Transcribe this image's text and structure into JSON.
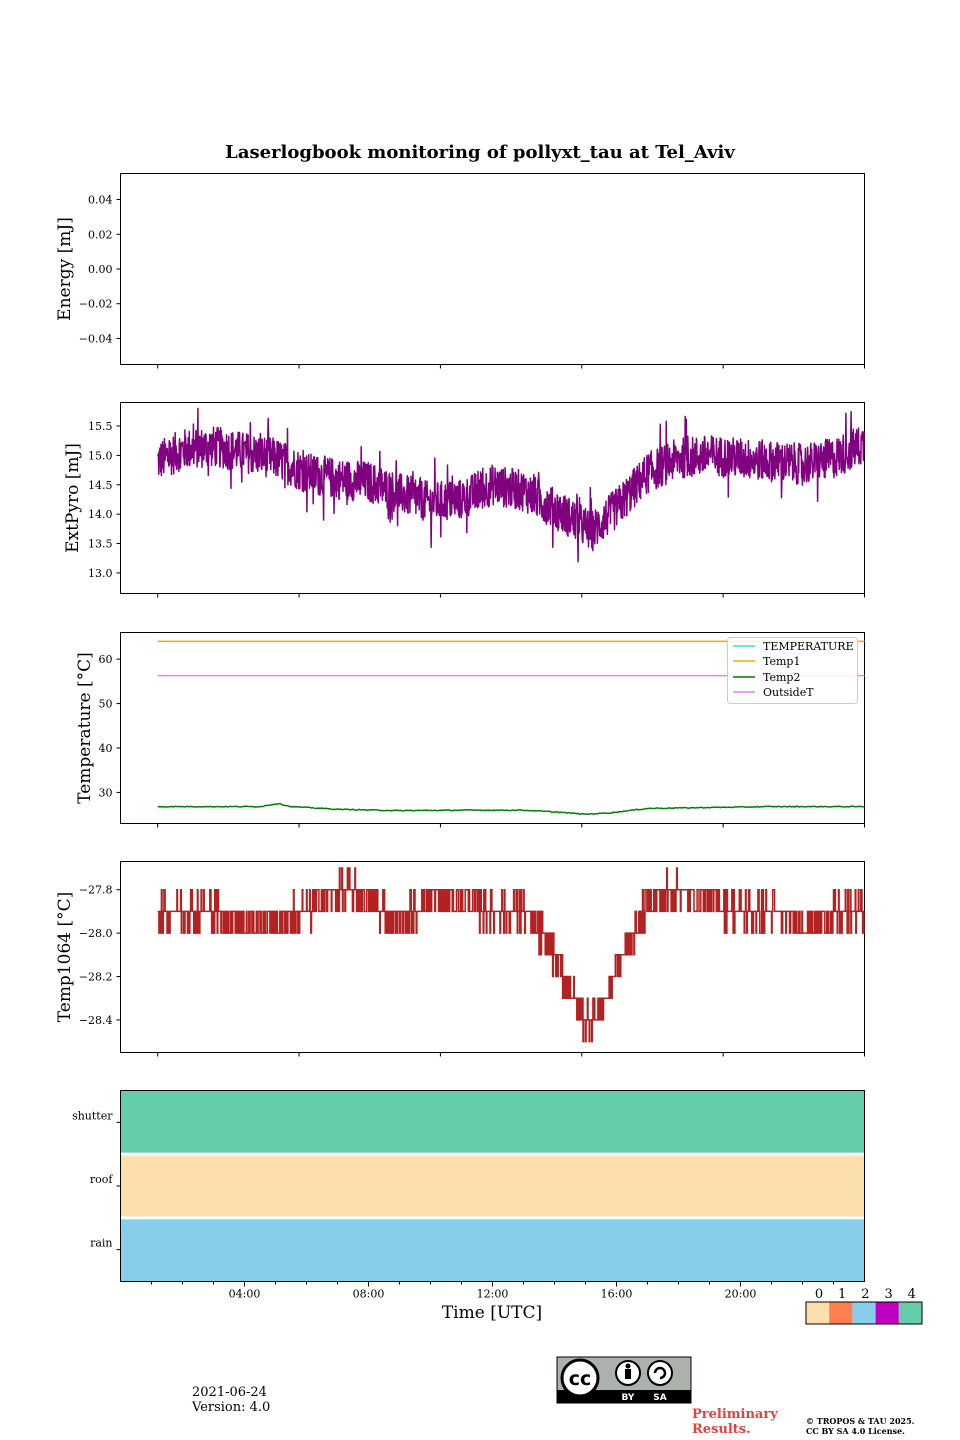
{
  "title": "Laserlogbook monitoring of pollyxt_tau at Tel_Aviv",
  "colors": {
    "energy": "#1f77b4",
    "extpyro": "#800080",
    "temperature": "#40e0d0",
    "temp1": "#ffa500",
    "temp2": "#008000",
    "outsideT": "#ee82ee",
    "temp1064": "#b22222",
    "status_0": "#fddfae",
    "status_1": "#ff7f50",
    "status_2": "#87ceeb",
    "status_3": "#c000c0",
    "status_4": "#66cdaa"
  },
  "footer": {
    "date": "2021-06-24",
    "version": "Version: 4.0",
    "preliminary_line1": "Preliminary",
    "preliminary_line2": "Results.",
    "copyright_line1": "© TROPOS & TAU 2025.",
    "copyright_line2": "CC BY SA 4.0 License.",
    "cc_badge": "cc",
    "cc_by": "BY",
    "cc_sa": "SA"
  },
  "chart_data": [
    {
      "type": "line",
      "ylabel": "Energy [mJ]",
      "xlim": [
        0,
        24
      ],
      "ylim": [
        -0.055,
        0.055
      ],
      "yticks": [
        0.04,
        0.02,
        0.0,
        -0.02,
        -0.04
      ],
      "ytick_labels": [
        "0.04",
        "0.02",
        "0.00",
        "−0.02",
        "−0.04"
      ],
      "series": []
    },
    {
      "type": "line",
      "ylabel": "ExtPyro [mJ]",
      "xlim": [
        0,
        24
      ],
      "ylim": [
        12.65,
        15.9
      ],
      "yticks": [
        15.5,
        15.0,
        14.5,
        14.0,
        13.5,
        13.0
      ],
      "ytick_labels": [
        "15.5",
        "15.0",
        "14.5",
        "14.0",
        "13.5",
        "13.0"
      ],
      "series": [
        {
          "color_key": "extpyro",
          "x": [
            1.2,
            2,
            3,
            4,
            5,
            6,
            7,
            8,
            9,
            10,
            11,
            12,
            13,
            14,
            14.8,
            15.2,
            16,
            17,
            18,
            19,
            20,
            21,
            22,
            23,
            24
          ],
          "y": [
            14.9,
            15.1,
            15.15,
            15.05,
            14.95,
            14.7,
            14.6,
            14.55,
            14.35,
            14.2,
            14.25,
            14.5,
            14.4,
            14.1,
            13.85,
            13.7,
            14.1,
            14.7,
            14.95,
            15.0,
            14.95,
            14.9,
            14.85,
            14.95,
            15.2
          ],
          "noise": 0.35
        }
      ]
    },
    {
      "type": "line",
      "ylabel": "Temperature [°C]",
      "xlim": [
        0,
        24
      ],
      "ylim": [
        23,
        66
      ],
      "yticks": [
        60,
        50,
        40,
        30
      ],
      "ytick_labels": [
        "60",
        "50",
        "40",
        "30"
      ],
      "legend": [
        "TEMPERATURE",
        "Temp1",
        "Temp2",
        "OutsideT"
      ],
      "legend_color_keys": [
        "temperature",
        "temp1",
        "temp2",
        "outsideT"
      ],
      "legend_placement": "top-right",
      "series": [
        {
          "name": "Temp1",
          "color_key": "temp1",
          "x": [
            1.2,
            24
          ],
          "y": [
            64.0,
            64.0
          ]
        },
        {
          "name": "OutsideT",
          "color_key": "outsideT",
          "x": [
            1.2,
            24
          ],
          "y": [
            56.3,
            56.3
          ]
        },
        {
          "name": "Temp2",
          "color_key": "temp2",
          "x": [
            1.2,
            3,
            4.5,
            5.1,
            5.5,
            7,
            9,
            11,
            13,
            14,
            15,
            15.8,
            17,
            19,
            21,
            24
          ],
          "y": [
            26.8,
            26.8,
            26.8,
            27.5,
            26.8,
            26.2,
            25.9,
            26.0,
            26.0,
            25.6,
            25.1,
            25.4,
            26.4,
            26.6,
            26.8,
            26.8
          ]
        }
      ]
    },
    {
      "type": "line",
      "ylabel": "Temp1064 [°C]",
      "xlim": [
        0,
        24
      ],
      "ylim": [
        -28.55,
        -27.67
      ],
      "yticks": [
        -27.8,
        -28.0,
        -28.2,
        -28.4
      ],
      "ytick_labels": [
        "−27.8",
        "−28.0",
        "−28.2",
        "−28.4"
      ],
      "series": [
        {
          "color_key": "temp1064",
          "x": [
            1.2,
            3,
            4,
            5,
            6,
            7,
            8,
            9,
            10,
            11,
            12,
            13,
            13.8,
            14.5,
            15.0,
            15.5,
            16.2,
            17,
            18,
            19,
            20,
            21,
            22,
            24
          ],
          "y": [
            -27.9,
            -27.9,
            -27.95,
            -27.95,
            -27.9,
            -27.8,
            -27.85,
            -27.95,
            -27.85,
            -27.85,
            -27.9,
            -27.9,
            -28.05,
            -28.25,
            -28.4,
            -28.35,
            -28.1,
            -27.85,
            -27.8,
            -27.85,
            -27.9,
            -27.9,
            -27.95,
            -27.9
          ],
          "step": 0.1
        }
      ]
    },
    {
      "type": "heatmap",
      "xlabel": "Time [UTC]",
      "xlim": [
        0,
        24
      ],
      "xticks": [
        4,
        8,
        12,
        16,
        20
      ],
      "xtick_labels": [
        "04:00",
        "08:00",
        "12:00",
        "16:00",
        "20:00"
      ],
      "rows": [
        "shutter",
        "roof",
        "rain"
      ],
      "row_values": [
        4,
        0,
        2
      ],
      "colorbar_ticks": [
        0,
        1,
        2,
        3,
        4
      ],
      "colorbar_labels": [
        "0",
        "1",
        "2",
        "3",
        "4"
      ]
    }
  ]
}
